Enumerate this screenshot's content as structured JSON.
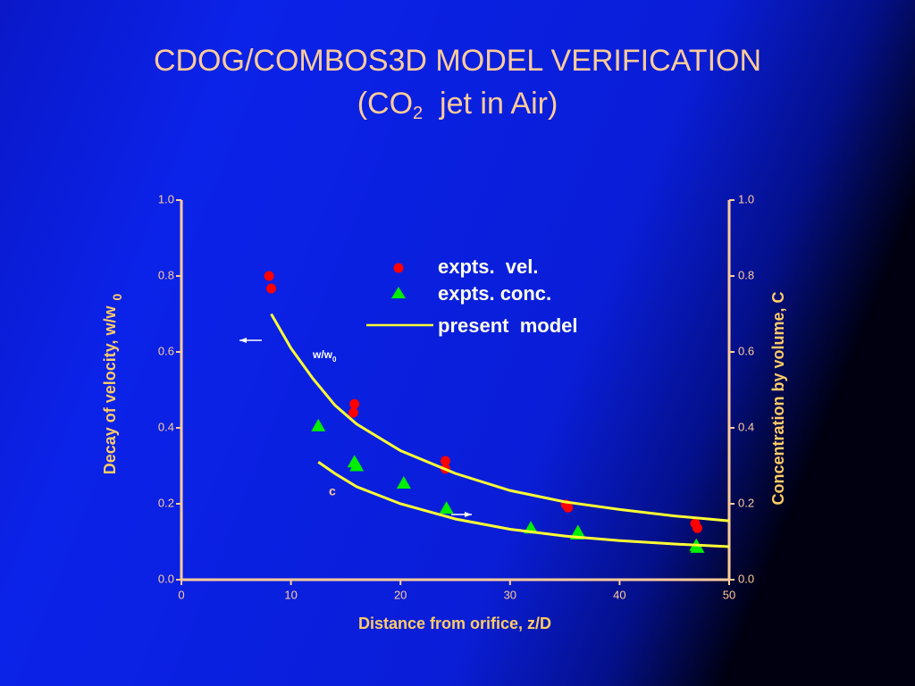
{
  "chart_data": {
    "type": "scatter",
    "title": "CDOG/COMBOS3D  MODEL VERIFICATION",
    "subtitle": [
      "(CO",
      "2",
      "  jet in Air)"
    ],
    "x_label": "Distance from orifice, z/D",
    "y_label": [
      "Decay of velocity, w/w",
      "0"
    ],
    "y2_label": "Concentration by volume, C",
    "annotations": {
      "velocity": [
        "w/w",
        "0"
      ],
      "concentration": "c"
    },
    "xlim": [
      0,
      50
    ],
    "xticks": [
      0,
      10,
      20,
      30,
      40,
      50
    ],
    "ylim": [
      0,
      1
    ],
    "yticks": [
      {
        "value": 0,
        "label": "0.0"
      },
      0.2,
      0.4,
      0.6,
      0.8,
      {
        "value": 1,
        "label": "1.0"
      }
    ],
    "y2lim": [
      0,
      1
    ],
    "y2ticks": [
      {
        "value": 0,
        "label": "0.0"
      },
      0.2,
      0.4,
      0.6,
      0.8,
      {
        "value": 1,
        "label": "1.0"
      }
    ],
    "series": [
      {
        "name": "expts.  vel.",
        "style": "dot",
        "color": "#ff0000",
        "x": [
          8.0,
          8.2,
          15.8,
          15.7,
          24.1,
          24.1,
          35.1,
          35.3,
          46.9,
          47.1
        ],
        "values": [
          0.8,
          0.767,
          0.463,
          0.44,
          0.313,
          0.292,
          0.198,
          0.19,
          0.148,
          0.136
        ]
      },
      {
        "name": "expts. conc.",
        "style": "triangle",
        "color": "#00ee00",
        "axis": "y2",
        "x": [
          12.5,
          15.8,
          16.0,
          20.3,
          24.2,
          31.9,
          36.1,
          36.2,
          47.0,
          47.1
        ],
        "values": [
          0.405,
          0.31,
          0.3,
          0.254,
          0.188,
          0.136,
          0.12,
          0.126,
          0.09,
          0.085
        ]
      },
      {
        "name": "present  model",
        "style": "line",
        "color": "#ffff33",
        "x": [
          8.2,
          10,
          12,
          14,
          16,
          20,
          25,
          30,
          35,
          40,
          45,
          50
        ],
        "values": [
          0.7,
          0.61,
          0.53,
          0.46,
          0.41,
          0.34,
          0.28,
          0.235,
          0.205,
          0.185,
          0.168,
          0.155
        ]
      },
      {
        "style": "line",
        "color": "#ffff33",
        "axis": "y2",
        "x": [
          12.5,
          14,
          16,
          20,
          25,
          30,
          35,
          40,
          45,
          50
        ],
        "values": [
          0.31,
          0.28,
          0.245,
          0.2,
          0.16,
          0.133,
          0.115,
          0.103,
          0.094,
          0.087
        ]
      }
    ]
  }
}
